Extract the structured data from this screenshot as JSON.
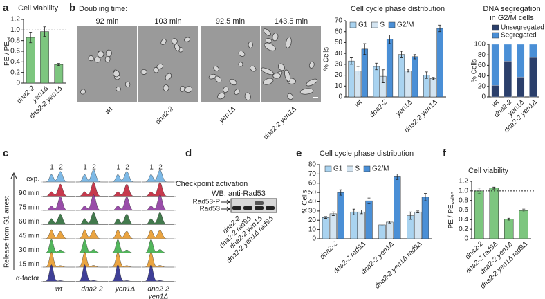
{
  "panel_labels": [
    "a",
    "b",
    "c",
    "d",
    "e",
    "f"
  ],
  "microscopy": {
    "heading": "Doubling time:",
    "doubling_times": [
      "92 min",
      "103 min",
      "92.5 min",
      "143.5 min"
    ],
    "strains": [
      "wt",
      "dna2-2",
      "yen1Δ",
      "dna2-2 yen1Δ"
    ]
  },
  "flow": {
    "peak_labels": [
      "1",
      "2"
    ],
    "rows": [
      "exp.",
      "90 min",
      "75 min",
      "60 min",
      "45 min",
      "30 min",
      "15 min",
      "α-factor"
    ],
    "columns": [
      [
        "wt"
      ],
      [
        "dna2-2"
      ],
      [
        "yen1Δ"
      ],
      [
        "dna2-2",
        "yen1Δ"
      ]
    ],
    "axis_label": "Release from G1 arrest"
  },
  "western": {
    "title": "Checkpoint activation",
    "antibody": "WB: anti-Rad53",
    "bands": [
      "Rad53-P",
      "Rad53"
    ],
    "lanes": [
      "dna2-2",
      "dna2-2 rad9Δ",
      "dna2-2 yen1Δ",
      "dna2-2 yen1Δ rad9Δ"
    ]
  },
  "chart_data": [
    {
      "type": "bar",
      "title": [
        "Cell viability"
      ],
      "ylabel": "PE / PE",
      "ylabel_subscript": "wt",
      "categories": [
        "dna2-2",
        "yen1Δ",
        "dna2-2 yen1Δ"
      ],
      "values": [
        0.86,
        0.97,
        0.35
      ],
      "errors": [
        0.1,
        0.09,
        0.02
      ],
      "color": "#7dc67f",
      "ylim": [
        0,
        1.2
      ],
      "yticks": [
        0,
        0.2,
        0.4,
        0.6,
        0.8,
        {
          "value": 1,
          "label": "1.0"
        },
        1.2
      ],
      "reference_line": 1
    },
    {
      "type": "bar",
      "title": [
        "Cell cycle phase distribution"
      ],
      "ylabel": "% Cells",
      "categories": [
        "wt",
        "dna2-2",
        "yen1Δ",
        "dna2-2 yen1Δ"
      ],
      "series": [
        {
          "name": "G1",
          "color": "#a9d3f0",
          "values": [
            33,
            28,
            39,
            20
          ],
          "errors": [
            3,
            3,
            3,
            3
          ]
        },
        {
          "name": "S",
          "color": "#d3e4f1",
          "values": [
            24,
            19,
            24,
            17
          ],
          "errors": [
            4,
            6,
            1,
            1
          ]
        },
        {
          "name": "G2/M",
          "color": "#4a8fd6",
          "values": [
            44,
            53,
            37,
            63
          ],
          "errors": [
            5,
            4,
            2,
            3
          ]
        }
      ],
      "ylim": [
        0,
        70
      ],
      "yticks": [
        0,
        10,
        20,
        30,
        40,
        50,
        60,
        70
      ],
      "legend": "top"
    },
    {
      "type": "bar",
      "title": [
        "DNA segregation",
        "in G2/M cells"
      ],
      "ylabel": "% Cells",
      "stacked": true,
      "categories": [
        "wt",
        "dna2-2",
        "yen1Δ",
        "dna2-2 yen1Δ"
      ],
      "series": [
        {
          "name": "Unsegregated",
          "color": "#2b3f6b",
          "values": [
            22,
            68,
            38,
            75
          ]
        },
        {
          "name": "Segregated",
          "color": "#4a8fd6",
          "values": [
            78,
            32,
            62,
            25
          ]
        }
      ],
      "ylim": [
        0,
        100
      ],
      "yticks": [
        0,
        20,
        40,
        60,
        80,
        100
      ],
      "legend": "top"
    },
    {
      "type": "bar",
      "title": [
        "Cell cycle phase distribution"
      ],
      "ylabel": "% Cells",
      "categories": [
        "dna2-2",
        "dna2-2 rad9Δ",
        "dna2-2 yen1Δ",
        "dna2-2 yen1Δ rad9Δ"
      ],
      "series": [
        {
          "name": "G1",
          "color": "#a9d3f0",
          "values": [
            23,
            29,
            15,
            25
          ],
          "errors": [
            1,
            3,
            1,
            4
          ]
        },
        {
          "name": "S",
          "color": "#d3e4f1",
          "values": [
            27,
            29,
            18,
            29
          ],
          "errors": [
            2,
            2,
            1,
            1
          ]
        },
        {
          "name": "G2/M",
          "color": "#4a8fd6",
          "values": [
            50,
            41,
            67,
            45
          ],
          "errors": [
            3,
            3,
            3,
            4
          ]
        }
      ],
      "ylim": [
        0,
        80
      ],
      "yticks": [
        0,
        10,
        20,
        30,
        40,
        50,
        60,
        70,
        80
      ],
      "legend": "top"
    },
    {
      "type": "bar",
      "title": [
        "Cell viability"
      ],
      "ylabel": "PE / PE",
      "ylabel_subscript": "rad9Δ",
      "categories": [
        "dna2-2",
        "dna2-2 rad9Δ",
        "dna2-2 yen1Δ",
        "dna2-2 yen1Δ rad9Δ"
      ],
      "values": [
        1,
        1.06,
        0.41,
        0.59
      ],
      "errors": [
        0.06,
        0.02,
        0.02,
        0.03
      ],
      "color": "#7dc67f",
      "ylim": [
        0,
        1.2
      ],
      "yticks": [
        0,
        0.2,
        0.4,
        0.6,
        0.8,
        {
          "value": 1,
          "label": "1.0"
        },
        1.2
      ],
      "reference_line": 1
    }
  ]
}
